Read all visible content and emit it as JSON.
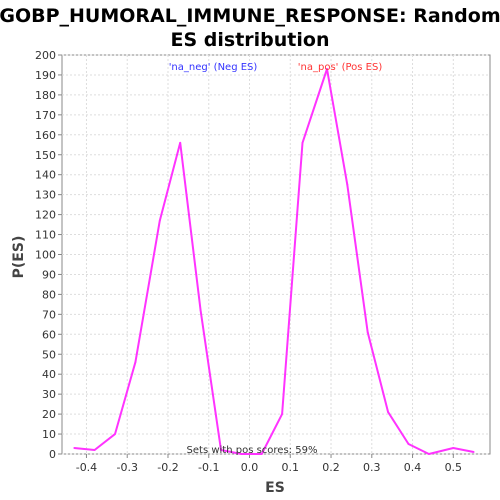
{
  "chart_data": {
    "type": "line",
    "title": "GOBP_HUMORAL_IMMUNE_RESPONSE: Random ES distribution",
    "title_lines": [
      "GOBP_HUMORAL_IMMUNE_RESPONSE: Random",
      "ES distribution"
    ],
    "xlabel": "ES",
    "ylabel": "P(ES)",
    "xlim": [
      -0.46,
      0.59
    ],
    "ylim": [
      0,
      200
    ],
    "xticks": [
      -0.4,
      -0.3,
      -0.2,
      -0.1,
      0.0,
      0.1,
      0.2,
      0.3,
      0.4,
      0.5
    ],
    "xtick_labels": [
      "-0.4",
      "-0.3",
      "-0.2",
      "-0.1",
      "0.0",
      "0.1",
      "0.2",
      "0.3",
      "0.4",
      "0.5"
    ],
    "yticks": [
      0,
      10,
      20,
      30,
      40,
      50,
      60,
      70,
      80,
      90,
      100,
      110,
      120,
      130,
      140,
      150,
      160,
      170,
      180,
      190,
      200
    ],
    "grid": true,
    "legend": [
      {
        "label": "'na_neg' (Neg ES)",
        "color": "#3333ff"
      },
      {
        "label": "'na_pos' (Pos ES)",
        "color": "#ff3333"
      }
    ],
    "annotation": "Sets with pos scores: 59%",
    "series": [
      {
        "color": "#ff33ff",
        "x": [
          -0.43,
          -0.38,
          -0.33,
          -0.28,
          -0.22,
          -0.17,
          -0.12,
          -0.07,
          -0.02,
          0.03,
          0.08,
          0.13,
          0.19,
          0.24,
          0.29,
          0.34,
          0.39,
          0.44,
          0.5,
          0.55
        ],
        "y": [
          3,
          2,
          10,
          46,
          117,
          156,
          72,
          2,
          0,
          0,
          20,
          156,
          193,
          135,
          61,
          21,
          5,
          0,
          3,
          1
        ]
      }
    ]
  }
}
